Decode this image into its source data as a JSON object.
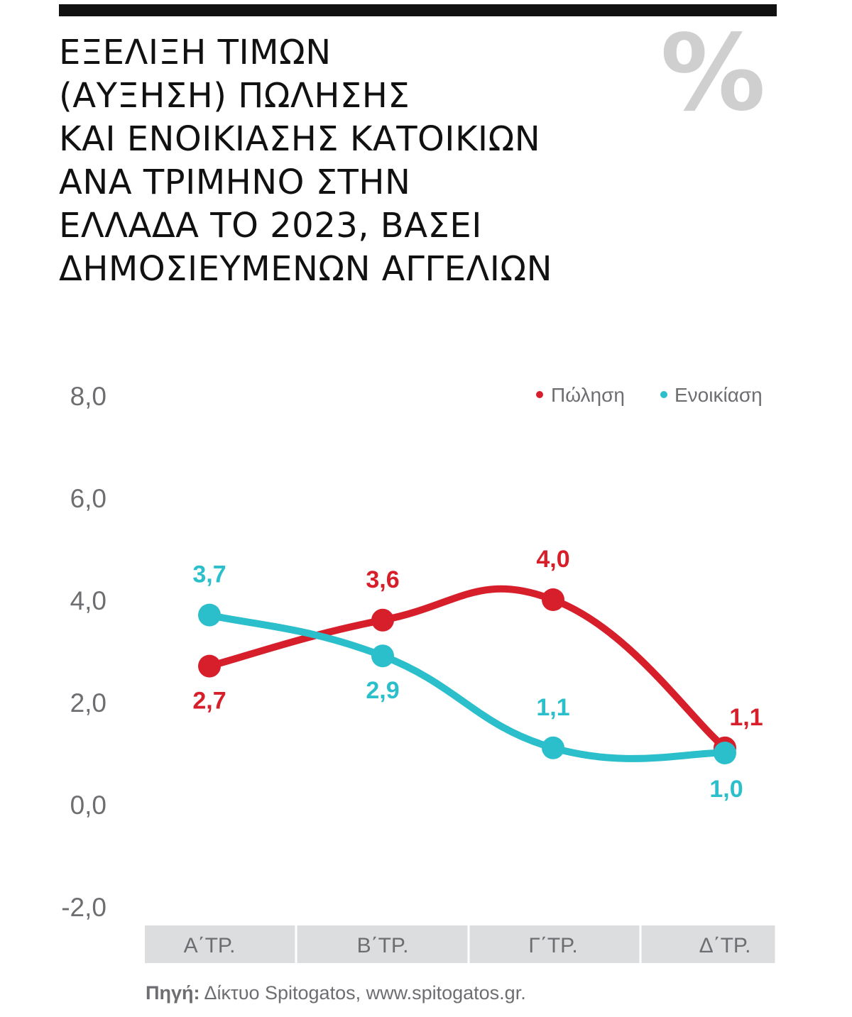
{
  "title_lines": [
    "ΕΞΕΛΙΞΗ ΤΙΜΩΝ",
    "(ΑΥΞΗΣΗ) ΠΩΛΗΣΗΣ",
    "ΚΑΙ ΕΝΟΙΚΙΑΣΗΣ ΚΑΤΟΙΚΙΩΝ",
    "ΑΝΑ ΤΡΙΜΗΝΟ ΣΤΗΝ",
    "ΕΛΛΑΔΑ ΤΟ 2023, ΒΑΣΕΙ",
    "ΔΗΜΟΣΙΕΥΜΕΝΩΝ ΑΓΓΕΛΙΩΝ"
  ],
  "percent_symbol": "%",
  "source": {
    "label": "Πηγή:",
    "text": "Δίκτυο Spitogatos, www.spitogatos.gr."
  },
  "colors": {
    "sale": "#d71f2b",
    "rent": "#2bbfcb",
    "axis_text": "#6d6e71",
    "category_band": "#dcdddf",
    "percent_icon": "#cfcfcf"
  },
  "chart_data": {
    "type": "line",
    "categories": [
      "Α΄ΤΡ.",
      "Β΄ΤΡ.",
      "Γ΄ΤΡ.",
      "Δ΄ΤΡ."
    ],
    "ylim": [
      -2.0,
      8.0
    ],
    "yticks": [
      8.0,
      6.0,
      4.0,
      2.0,
      0.0,
      -2.0
    ],
    "ytick_labels": [
      "8,0",
      "6,0",
      "4,0",
      "2,0",
      "0,0",
      "-2,0"
    ],
    "grid": false,
    "legend_position": "top-right",
    "series": [
      {
        "key": "sale",
        "name": "Πώληση",
        "values": [
          2.7,
          3.6,
          4.0,
          1.1
        ],
        "labels": [
          "2,7",
          "3,6",
          "4,0",
          "1,1"
        ],
        "label_side": [
          "below",
          "above",
          "above",
          "above"
        ]
      },
      {
        "key": "rent",
        "name": "Ενοικίαση",
        "values": [
          3.7,
          2.9,
          1.1,
          1.0
        ],
        "labels": [
          "3,7",
          "2,9",
          "1,1",
          "1,0"
        ],
        "label_side": [
          "above",
          "below",
          "above",
          "below"
        ]
      }
    ]
  }
}
